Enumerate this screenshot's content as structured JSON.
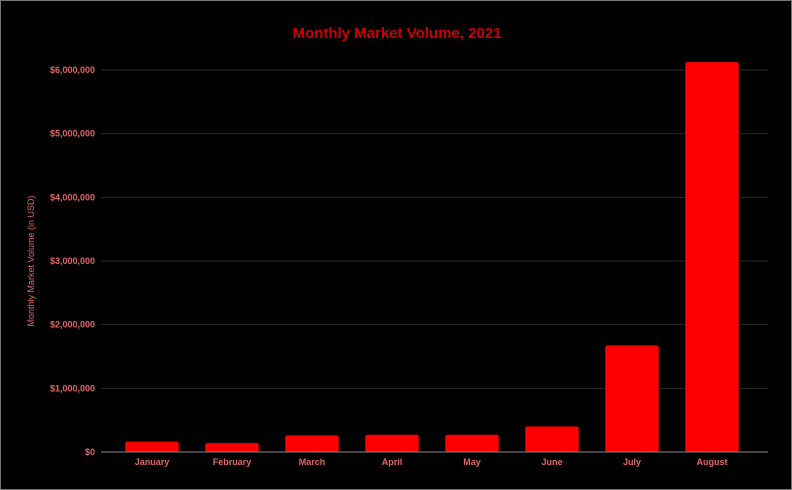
{
  "chart_data": {
    "type": "bar",
    "title": "Monthly Market Volume, 2021",
    "xlabel": "",
    "ylabel": "Monthly Market Volume (in USD)",
    "categories": [
      "January",
      "February",
      "March",
      "April",
      "May",
      "June",
      "July",
      "August"
    ],
    "values": [
      160000,
      137000,
      256000,
      267000,
      267000,
      397000,
      1670000,
      6120000
    ],
    "ylim": [
      0,
      6000000
    ],
    "yticks": [
      0,
      1000000,
      2000000,
      3000000,
      4000000,
      5000000,
      6000000
    ],
    "ytick_labels": [
      "$0",
      "$1,000,000",
      "$2,000,000",
      "$3,000,000",
      "$4,000,000",
      "$5,000,000",
      "$6,000,000"
    ],
    "grid": true,
    "legend": "none",
    "colors": {
      "bar": "#ff0000",
      "title": "#cc0000",
      "ticks": "#e06666",
      "grid": "#2a2a2a",
      "background": "#000000"
    }
  }
}
